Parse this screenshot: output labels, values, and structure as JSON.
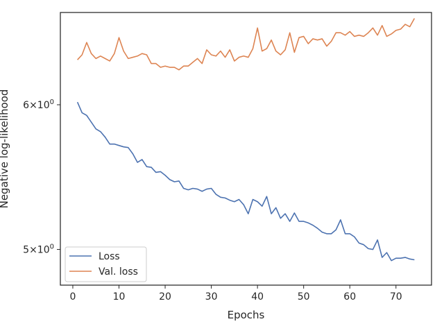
{
  "chart_data": {
    "type": "line",
    "xlabel": "Epochs",
    "ylabel": "Negative log-likelihood",
    "yscale": "log",
    "xlim": [
      -2.7,
      77.7
    ],
    "ylim": [
      4.78,
      6.74
    ],
    "xticks": [
      0,
      10,
      20,
      30,
      40,
      50,
      60,
      70
    ],
    "yticks": [
      {
        "value": 6,
        "base": "6×10",
        "exp": "0"
      },
      {
        "value": 5,
        "base": "5×10",
        "exp": "0"
      }
    ],
    "legend_position": "lower-left",
    "x": [
      1,
      2,
      3,
      4,
      5,
      6,
      7,
      8,
      9,
      10,
      11,
      12,
      13,
      14,
      15,
      16,
      17,
      18,
      19,
      20,
      21,
      22,
      23,
      24,
      25,
      26,
      27,
      28,
      29,
      30,
      31,
      32,
      33,
      34,
      35,
      36,
      37,
      38,
      39,
      40,
      41,
      42,
      43,
      44,
      45,
      46,
      47,
      48,
      49,
      50,
      51,
      52,
      53,
      54,
      55,
      56,
      57,
      58,
      59,
      60,
      61,
      62,
      63,
      64,
      65,
      66,
      67,
      68,
      69,
      70,
      71,
      72,
      73,
      74
    ],
    "series": [
      {
        "name": "Loss",
        "color": "#4c72b0",
        "values": [
          6.02,
          5.94,
          5.92,
          5.87,
          5.82,
          5.8,
          5.76,
          5.71,
          5.71,
          5.7,
          5.69,
          5.685,
          5.64,
          5.58,
          5.6,
          5.55,
          5.545,
          5.51,
          5.515,
          5.49,
          5.46,
          5.445,
          5.45,
          5.4,
          5.39,
          5.4,
          5.395,
          5.38,
          5.395,
          5.4,
          5.36,
          5.34,
          5.335,
          5.32,
          5.31,
          5.325,
          5.29,
          5.23,
          5.325,
          5.31,
          5.28,
          5.345,
          5.23,
          5.27,
          5.2,
          5.23,
          5.18,
          5.235,
          5.18,
          5.18,
          5.17,
          5.155,
          5.135,
          5.11,
          5.1,
          5.1,
          5.125,
          5.19,
          5.1,
          5.1,
          5.08,
          5.04,
          5.03,
          5.005,
          5.0,
          5.06,
          4.95,
          4.98,
          4.93,
          4.945,
          4.945,
          4.95,
          4.94,
          4.935
        ]
      },
      {
        "name": "Val. loss",
        "color": "#dd8452",
        "values": [
          6.35,
          6.39,
          6.49,
          6.4,
          6.36,
          6.38,
          6.36,
          6.34,
          6.4,
          6.53,
          6.42,
          6.36,
          6.37,
          6.38,
          6.4,
          6.39,
          6.32,
          6.32,
          6.29,
          6.3,
          6.29,
          6.29,
          6.27,
          6.3,
          6.3,
          6.33,
          6.36,
          6.32,
          6.43,
          6.39,
          6.38,
          6.42,
          6.37,
          6.43,
          6.34,
          6.37,
          6.38,
          6.37,
          6.44,
          6.61,
          6.42,
          6.44,
          6.51,
          6.42,
          6.39,
          6.43,
          6.57,
          6.41,
          6.53,
          6.54,
          6.48,
          6.52,
          6.51,
          6.52,
          6.46,
          6.5,
          6.57,
          6.57,
          6.55,
          6.58,
          6.54,
          6.55,
          6.54,
          6.57,
          6.61,
          6.55,
          6.63,
          6.54,
          6.56,
          6.59,
          6.6,
          6.64,
          6.62,
          6.69
        ]
      }
    ]
  },
  "colors": {
    "axes_edge": "#262626",
    "background": "#ffffff"
  }
}
